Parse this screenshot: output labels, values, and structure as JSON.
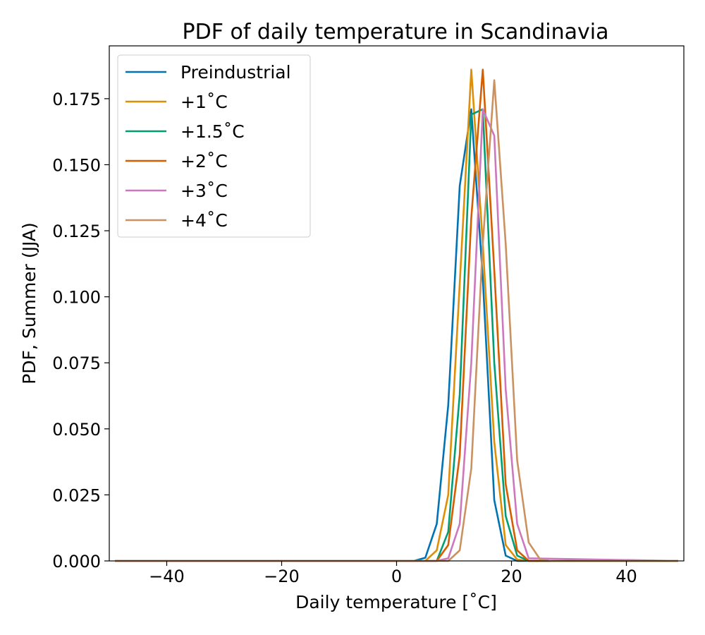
{
  "chart_data": {
    "type": "line",
    "title": "PDF of daily temperature in Scandinavia",
    "xlabel": "Daily temperature [˚C]",
    "ylabel": "PDF, Summer (JJA)",
    "xlim": [
      -50,
      50
    ],
    "ylim": [
      0,
      0.195
    ],
    "xticks": [
      -40,
      -20,
      0,
      20,
      40
    ],
    "xtick_labels": [
      "−40",
      "−20",
      "0",
      "20",
      "40"
    ],
    "yticks": [
      0,
      0.025,
      0.05,
      0.075,
      0.1,
      0.125,
      0.15,
      0.175
    ],
    "ytick_labels": [
      "0.000",
      "0.025",
      "0.050",
      "0.075",
      "0.100",
      "0.125",
      "0.150",
      "0.175"
    ],
    "grid": false,
    "legend_position": "top-left",
    "series": [
      {
        "name": "Preindustrial",
        "color": "#0173b2",
        "x": [
          -49,
          3,
          5,
          7,
          9,
          11,
          13,
          15,
          17,
          19,
          21,
          23,
          49
        ],
        "y": [
          0,
          0,
          0.0012,
          0.014,
          0.059,
          0.142,
          0.171,
          0.107,
          0.023,
          0.002,
          0,
          0,
          0
        ]
      },
      {
        "name": "+1˚C",
        "color": "#de8f05",
        "x": [
          -49,
          5,
          7,
          9,
          11,
          13,
          15,
          17,
          19,
          21,
          23,
          49
        ],
        "y": [
          0,
          0,
          0.004,
          0.025,
          0.105,
          0.186,
          0.12,
          0.045,
          0.006,
          0.0005,
          0,
          0
        ]
      },
      {
        "name": "+1.5˚C",
        "color": "#029e73",
        "x": [
          -49,
          7,
          9,
          11,
          13,
          15,
          17,
          19,
          21,
          23,
          49
        ],
        "y": [
          0,
          0,
          0.011,
          0.063,
          0.169,
          0.171,
          0.075,
          0.017,
          0.002,
          0,
          0
        ]
      },
      {
        "name": "+2˚C",
        "color": "#d55e00",
        "x": [
          -49,
          7,
          9,
          11,
          13,
          15,
          17,
          19,
          21,
          23,
          49
        ],
        "y": [
          0,
          0,
          0.006,
          0.04,
          0.13,
          0.186,
          0.11,
          0.029,
          0.004,
          0,
          0
        ]
      },
      {
        "name": "+3˚C",
        "color": "#cc78bc",
        "x": [
          -49,
          7,
          9,
          11,
          13,
          15,
          17,
          19,
          21,
          23,
          49
        ],
        "y": [
          0,
          0,
          0.001,
          0.014,
          0.075,
          0.171,
          0.161,
          0.065,
          0.014,
          0.001,
          0
        ]
      },
      {
        "name": "+4˚C",
        "color": "#ca9161",
        "x": [
          -49,
          9,
          11,
          13,
          15,
          17,
          19,
          21,
          23,
          25,
          27,
          49
        ],
        "y": [
          0,
          0,
          0.004,
          0.035,
          0.12,
          0.182,
          0.12,
          0.038,
          0.007,
          0.0005,
          0,
          0
        ]
      }
    ]
  }
}
